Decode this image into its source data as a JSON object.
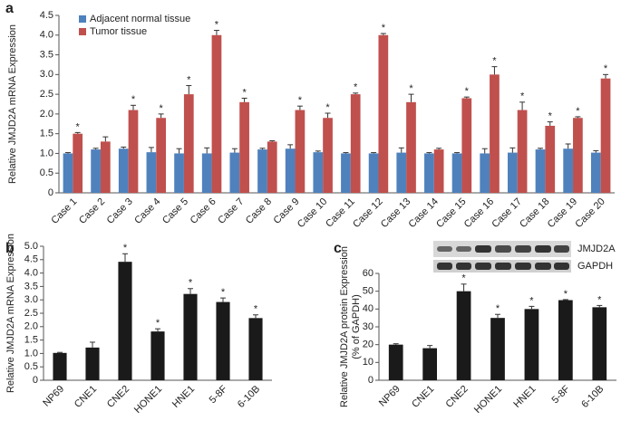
{
  "chart_data": [
    {
      "type": "bar",
      "panel": "a",
      "ylabel": [
        "Relative JMJD2A mRNA Expression"
      ],
      "categories": [
        "Case 1",
        "Case 2",
        "Case 3",
        "Case 4",
        "Case 5",
        "Case 6",
        "Case 7",
        "Case 8",
        "Case 9",
        "Case 10",
        "Case 11",
        "Case 12",
        "Case 13",
        "Case 14",
        "Case 15",
        "Case 16",
        "Case 17",
        "Case 18",
        "Case 19",
        "Case 20"
      ],
      "series": [
        {
          "name": "Adjacent normal tissue",
          "color": "#4f81bd",
          "values": [
            1.0,
            1.1,
            1.12,
            1.03,
            1.0,
            1.0,
            1.02,
            1.1,
            1.12,
            1.03,
            1.0,
            1.0,
            1.02,
            1.0,
            1.0,
            1.0,
            1.02,
            1.1,
            1.12,
            1.02
          ],
          "errors": [
            0.02,
            0.03,
            0.04,
            0.12,
            0.12,
            0.14,
            0.1,
            0.03,
            0.1,
            0.03,
            0.02,
            0.02,
            0.12,
            0.02,
            0.02,
            0.12,
            0.12,
            0.03,
            0.12,
            0.05
          ]
        },
        {
          "name": "Tumor tissue",
          "color": "#c0504d",
          "values": [
            1.5,
            1.3,
            2.1,
            1.9,
            2.5,
            4.0,
            2.3,
            1.3,
            2.1,
            1.9,
            2.5,
            4.0,
            2.3,
            1.1,
            2.4,
            3.0,
            2.1,
            1.7,
            1.9,
            2.9
          ],
          "errors": [
            0.03,
            0.12,
            0.12,
            0.1,
            0.22,
            0.12,
            0.1,
            0.02,
            0.1,
            0.12,
            0.03,
            0.04,
            0.2,
            0.03,
            0.03,
            0.2,
            0.2,
            0.1,
            0.03,
            0.1
          ]
        }
      ],
      "significance": [
        "*",
        null,
        "*",
        "*",
        "*",
        "*",
        "*",
        null,
        "*",
        "*",
        "*",
        "*",
        "*",
        null,
        "*",
        "*",
        "*",
        "*",
        "*",
        "*"
      ],
      "ylim": [
        0,
        4.5
      ],
      "yticks": [
        0,
        0.5,
        {
          "value": 1,
          "label": "1.0"
        },
        1.5,
        {
          "value": 2,
          "label": "2.0"
        },
        2.5,
        {
          "value": 3,
          "label": "3.0"
        },
        3.5,
        {
          "value": 4,
          "label": "4.0"
        },
        4.5
      ],
      "legend": "top-left"
    },
    {
      "type": "bar",
      "panel": "b",
      "ylabel": [
        "Relative JMJD2A mRNA Expression"
      ],
      "categories": [
        "NP69",
        "CNE1",
        "CNE2",
        "HONE1",
        "HNE1",
        "5-8F",
        "6-10B"
      ],
      "values": [
        1.02,
        1.22,
        4.42,
        1.82,
        3.22,
        2.92,
        2.32
      ],
      "errors": [
        0.02,
        0.2,
        0.3,
        0.1,
        0.2,
        0.15,
        0.12
      ],
      "color": "#1a1a1a",
      "significance": [
        null,
        null,
        "*",
        "*",
        "*",
        "*",
        "*"
      ],
      "ylim": [
        0,
        5
      ],
      "yticks": [
        0,
        0.5,
        {
          "value": 1,
          "label": "1.0"
        },
        1.5,
        {
          "value": 2,
          "label": "2.0"
        },
        2.5,
        {
          "value": 3,
          "label": "3.0"
        },
        3.5,
        {
          "value": 4,
          "label": "4.0"
        },
        4.5,
        {
          "value": 5,
          "label": "5.0"
        }
      ]
    },
    {
      "type": "bar",
      "panel": "c",
      "ylabel": [
        "Relative JMJD2A protein Expression",
        "(% of GAPDH)"
      ],
      "categories": [
        "NP69",
        "CNE1",
        "CNE2",
        "HONE1",
        "HNE1",
        "5-8F",
        "6-10B"
      ],
      "values": [
        20,
        18,
        50,
        35,
        40,
        45,
        41
      ],
      "errors": [
        0.5,
        1.5,
        4,
        2,
        1.5,
        0.3,
        1
      ],
      "color": "#1a1a1a",
      "significance": [
        null,
        null,
        "*",
        "*",
        "*",
        "*",
        "*"
      ],
      "ylim": [
        0,
        60
      ],
      "yticks": [
        0,
        10,
        20,
        30,
        40,
        50,
        60
      ],
      "blot_labels": [
        "JMJD2A",
        "GAPDH"
      ]
    }
  ]
}
